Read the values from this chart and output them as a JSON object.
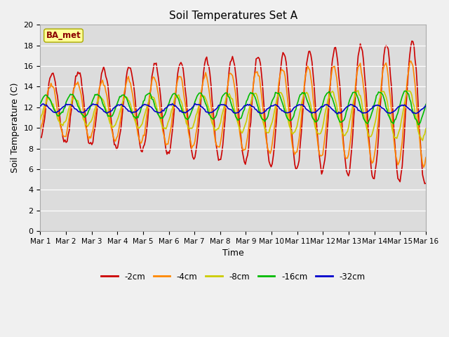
{
  "title": "Soil Temperatures Set A",
  "xlabel": "Time",
  "ylabel": "Soil Temperature (C)",
  "plot_bg_color": "#dcdcdc",
  "fig_bg_color": "#f0f0f0",
  "ylim": [
    0,
    20
  ],
  "yticks": [
    0,
    2,
    4,
    6,
    8,
    10,
    12,
    14,
    16,
    18,
    20
  ],
  "xtick_labels": [
    "Mar 1",
    "Mar 2",
    "Mar 3",
    "Mar 4",
    "Mar 5",
    "Mar 6",
    "Mar 7",
    "Mar 8",
    "Mar 9",
    "Mar 10",
    "Mar 11",
    "Mar 12",
    "Mar 13",
    "Mar 14",
    "Mar 15",
    "Mar 16"
  ],
  "series_colors": [
    "#cc0000",
    "#ff8800",
    "#cccc00",
    "#00bb00",
    "#0000cc"
  ],
  "series_labels": [
    "-2cm",
    "-4cm",
    "-8cm",
    "-16cm",
    "-32cm"
  ],
  "legend_label": "BA_met",
  "n_days": 15
}
